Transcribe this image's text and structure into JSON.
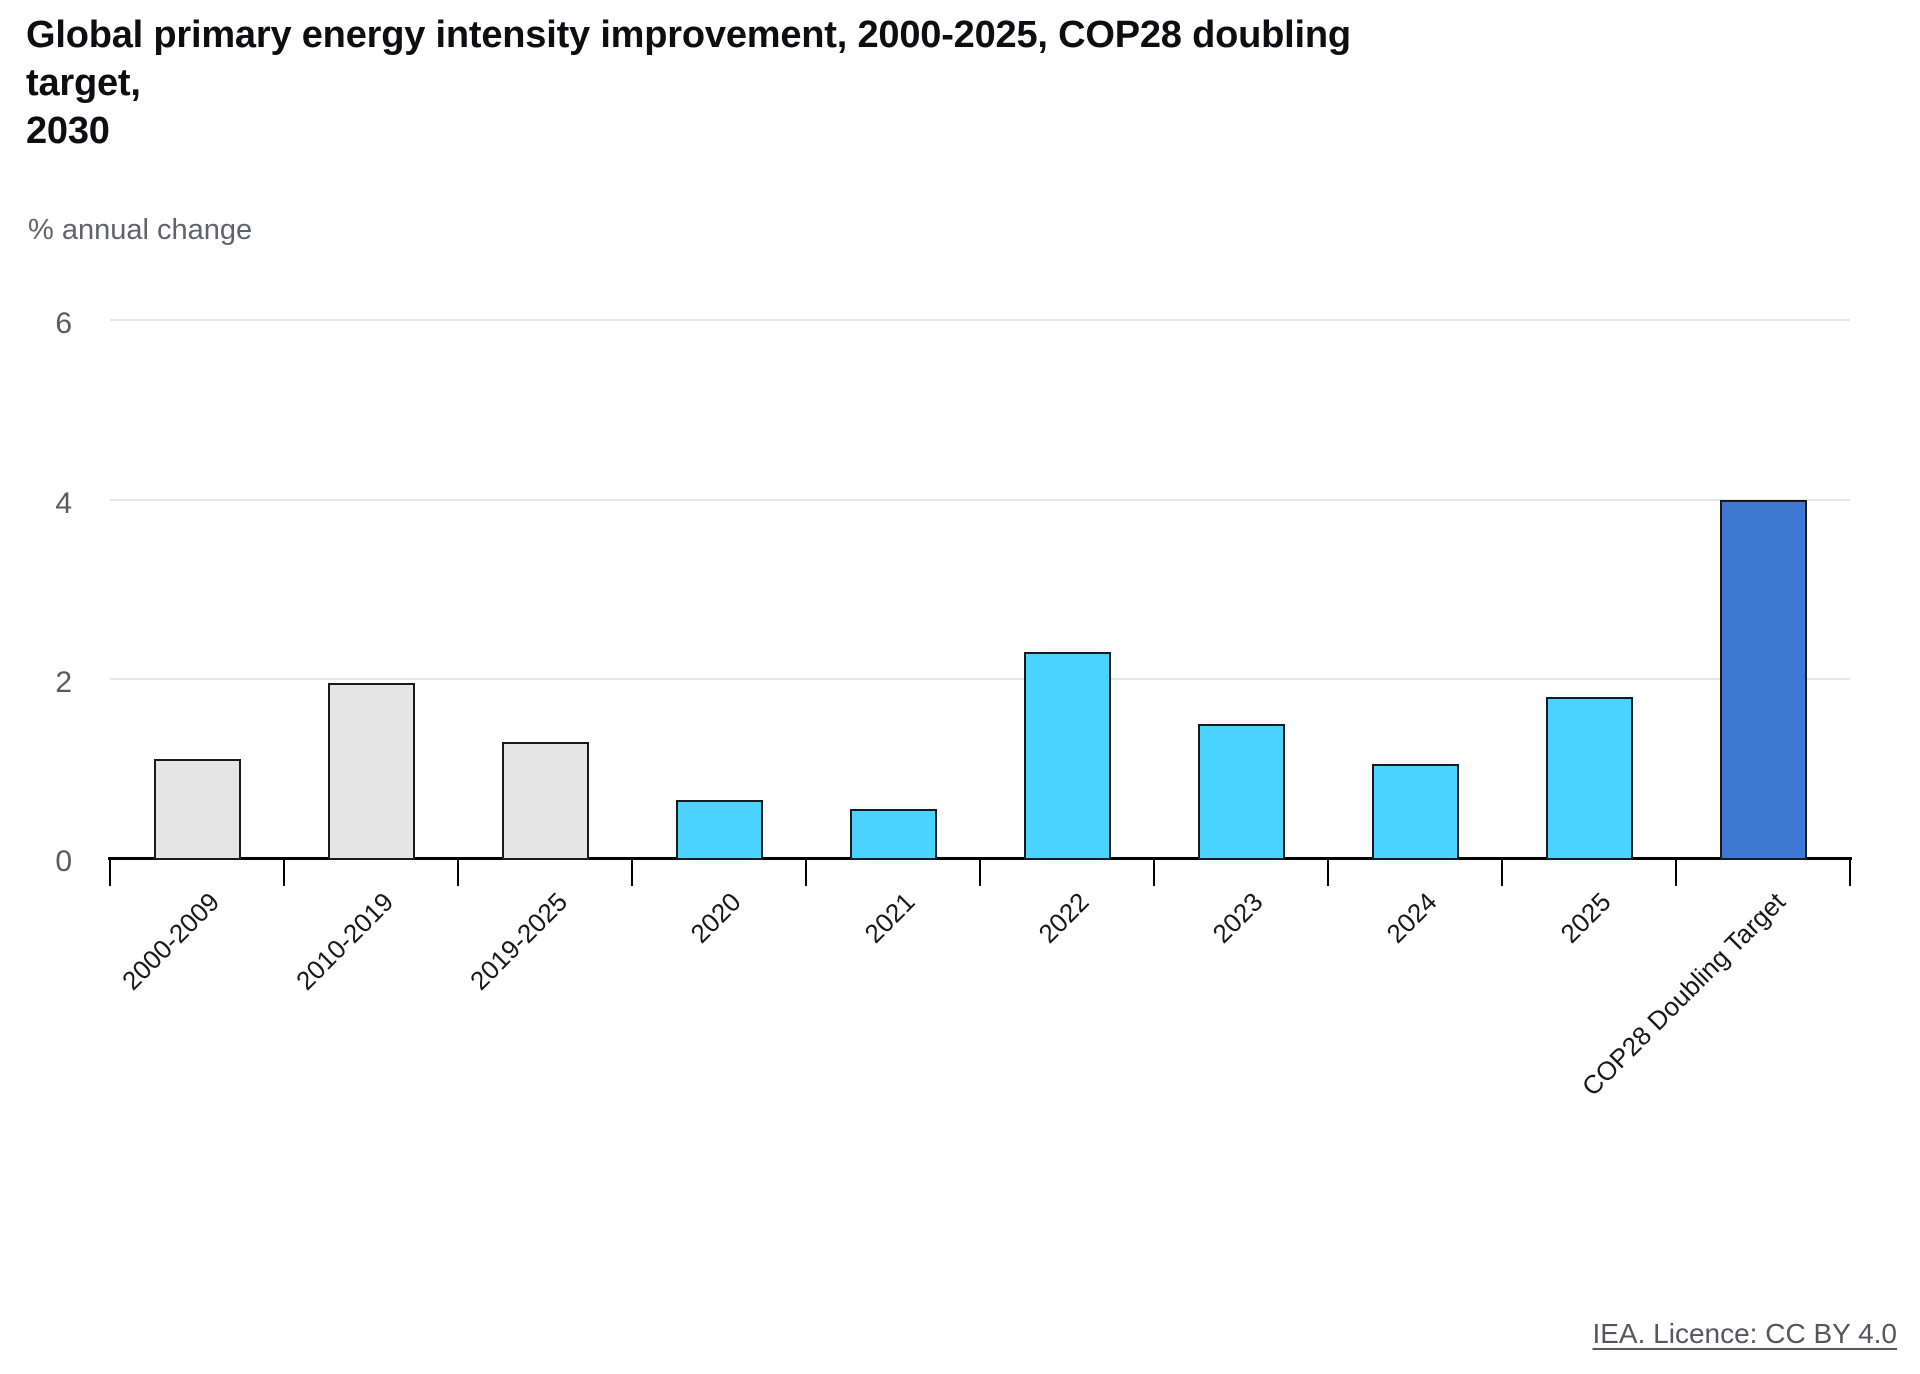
{
  "title": "Global primary energy intensity improvement, 2000-2025, COP28 doubling target,\n2030",
  "subtitle": "% annual change",
  "footer": {
    "licence_label": "IEA. Licence: CC BY 4.0"
  },
  "colors": {
    "bar_gray": "#e5e5e5",
    "bar_cyan": "#4ad3ff",
    "bar_blue": "#3e78d2",
    "bar_border": "#1a1a1e",
    "gridline": "#e6e6e6",
    "axis": "#000000",
    "tick_label": "#5a5a64",
    "muted_text": "#62626b"
  },
  "chart_data": {
    "type": "bar",
    "title": "Global primary energy intensity improvement, 2000-2025, COP28 doubling target, 2030",
    "xlabel": "",
    "ylabel": "% annual change",
    "ylim": [
      0,
      6
    ],
    "yticks": [
      0,
      2,
      4,
      6
    ],
    "grid": true,
    "legend": "none",
    "categories": [
      "2000-2009",
      "2010-2019",
      "2019-2025",
      "2020",
      "2021",
      "2022",
      "2023",
      "2024",
      "2025",
      "COP28 Doubling Target"
    ],
    "values": [
      1.1,
      1.95,
      1.3,
      0.65,
      0.55,
      2.3,
      1.5,
      1.05,
      1.8,
      4.0
    ],
    "bar_color_groups": [
      "gray",
      "gray",
      "gray",
      "cyan",
      "cyan",
      "cyan",
      "cyan",
      "cyan",
      "cyan",
      "blue"
    ]
  }
}
